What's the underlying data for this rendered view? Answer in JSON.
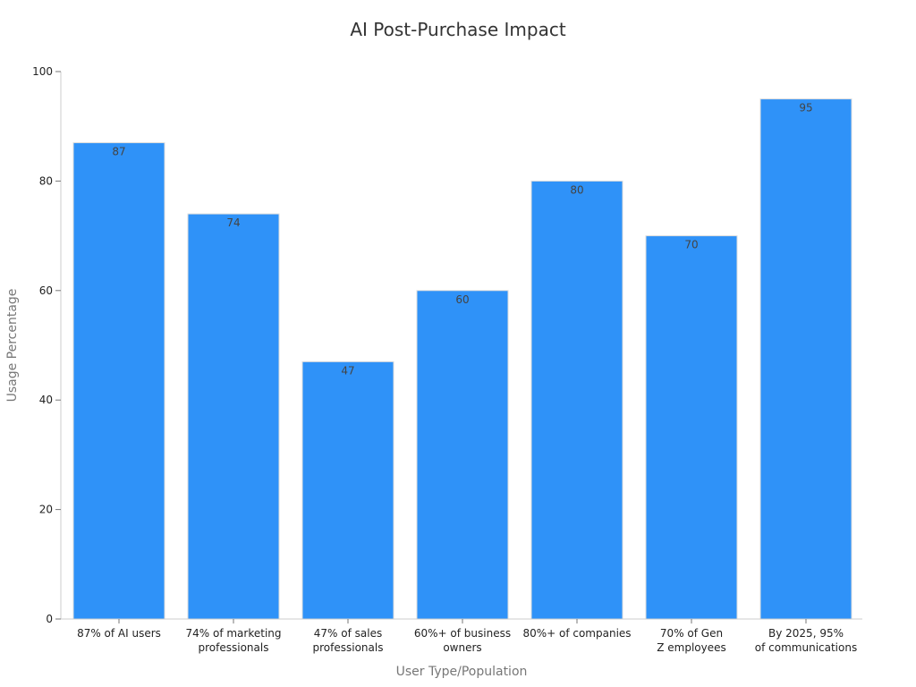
{
  "chart_data": {
    "type": "bar",
    "title": "AI Post-Purchase Impact",
    "xlabel": "User Type/Population",
    "ylabel": "Usage Percentage",
    "categories": [
      [
        "87% of AI users"
      ],
      [
        "74% of marketing",
        "professionals"
      ],
      [
        "47% of sales",
        "professionals"
      ],
      [
        "60%+ of business",
        "owners"
      ],
      [
        "80%+ of companies"
      ],
      [
        "70% of Gen",
        "Z employees"
      ],
      [
        "By 2025, 95%",
        "of communications"
      ]
    ],
    "values": [
      87,
      74,
      47,
      60,
      80,
      70,
      95
    ],
    "ylim": [
      0,
      100
    ],
    "yticks": [
      0,
      20,
      40,
      60,
      80,
      100
    ],
    "grid": false,
    "legend": "none",
    "bar_color": "#2f92f8"
  }
}
